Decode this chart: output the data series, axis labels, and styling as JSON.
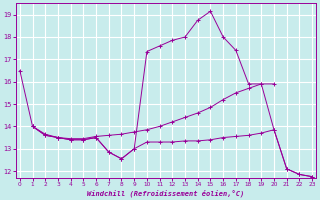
{
  "xlabel": "Windchill (Refroidissement éolien,°C)",
  "bg_color": "#c8ecec",
  "line_color": "#990099",
  "grid_color": "#ffffff",
  "ylim": [
    11.7,
    19.5
  ],
  "xlim": [
    -0.3,
    23.3
  ],
  "yticks": [
    12,
    13,
    14,
    15,
    16,
    17,
    18,
    19
  ],
  "xticks": [
    0,
    1,
    2,
    3,
    4,
    5,
    6,
    7,
    8,
    9,
    10,
    11,
    12,
    13,
    14,
    15,
    16,
    17,
    18,
    19,
    20,
    21,
    22,
    23
  ],
  "line1_x": [
    0,
    1,
    2,
    3,
    4,
    5,
    6,
    7,
    8,
    9,
    10,
    11,
    12,
    13,
    14,
    15,
    16,
    17,
    18,
    19,
    20,
    21,
    22,
    23
  ],
  "line1_y": [
    16.5,
    14.0,
    13.6,
    13.5,
    13.4,
    13.4,
    13.5,
    12.85,
    12.55,
    13.0,
    17.35,
    17.6,
    17.85,
    18.0,
    18.75,
    19.15,
    18.0,
    17.4,
    15.9,
    15.9,
    13.85,
    12.1,
    11.85,
    11.75
  ],
  "line2_x": [
    1,
    2,
    3,
    4,
    5,
    6,
    7,
    8,
    9,
    10,
    11,
    12,
    13,
    14,
    15,
    16,
    17,
    18,
    19,
    20
  ],
  "line2_y": [
    14.0,
    13.65,
    13.5,
    13.45,
    13.45,
    13.55,
    13.6,
    13.65,
    13.75,
    13.85,
    14.0,
    14.2,
    14.4,
    14.6,
    14.85,
    15.2,
    15.5,
    15.7,
    15.9,
    15.9
  ],
  "line3_x": [
    1,
    2,
    3,
    4,
    5,
    6,
    7,
    8,
    9,
    10,
    11,
    12,
    13,
    14,
    15,
    16,
    17,
    18,
    19,
    20,
    21,
    22,
    23
  ],
  "line3_y": [
    14.0,
    13.6,
    13.5,
    13.4,
    13.4,
    13.5,
    12.85,
    12.55,
    13.0,
    13.3,
    13.3,
    13.3,
    13.35,
    13.35,
    13.4,
    13.5,
    13.55,
    13.6,
    13.7,
    13.85,
    12.1,
    11.85,
    11.75
  ]
}
